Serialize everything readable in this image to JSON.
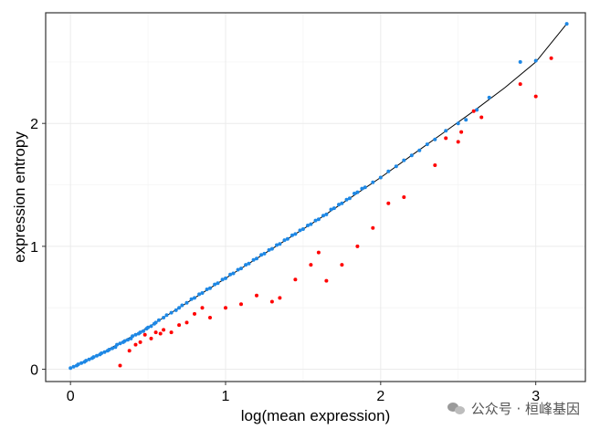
{
  "chart_data": {
    "type": "scatter",
    "xlabel": "log(mean expression)",
    "ylabel": "expression entropy",
    "xlim": [
      -0.16,
      3.32
    ],
    "ylim": [
      -0.1,
      2.9
    ],
    "x_ticks": [
      "0",
      "1",
      "2",
      "3"
    ],
    "y_ticks": [
      "0",
      "1",
      "2"
    ],
    "grid": true,
    "legend": "none",
    "colors": {
      "normal": "#1e88e5",
      "outlier": "#ff0000",
      "fit_line": "#000000"
    },
    "fit_line": {
      "x": [
        0.0,
        0.1,
        0.2,
        0.3,
        0.4,
        0.5,
        0.6,
        0.8,
        1.0,
        1.2,
        1.4,
        1.6,
        1.8,
        2.0,
        2.2,
        2.4,
        2.6,
        2.8,
        3.0,
        3.2
      ],
      "y": [
        0.01,
        0.07,
        0.13,
        0.2,
        0.27,
        0.34,
        0.42,
        0.58,
        0.74,
        0.9,
        1.06,
        1.22,
        1.39,
        1.56,
        1.74,
        1.92,
        2.1,
        2.29,
        2.5,
        2.81
      ]
    },
    "series": [
      {
        "category": "normal",
        "x": [
          0.0,
          0.02,
          0.04,
          0.05,
          0.07,
          0.09,
          0.1,
          0.12,
          0.14,
          0.15,
          0.17,
          0.19,
          0.2,
          0.22,
          0.24,
          0.25,
          0.27,
          0.29,
          0.3,
          0.32,
          0.34,
          0.35,
          0.37,
          0.39,
          0.4,
          0.42,
          0.44,
          0.45,
          0.47,
          0.49,
          0.5,
          0.52,
          0.54,
          0.55,
          0.57,
          0.6,
          0.62,
          0.65,
          0.68,
          0.7,
          0.72,
          0.75,
          0.78,
          0.8,
          0.83,
          0.85,
          0.88,
          0.9,
          0.93,
          0.95,
          0.98,
          1.0,
          1.03,
          1.05,
          1.08,
          1.1,
          1.13,
          1.15,
          1.18,
          1.2,
          1.23,
          1.25,
          1.28,
          1.3,
          1.33,
          1.35,
          1.38,
          1.4,
          1.43,
          1.45,
          1.48,
          1.5,
          1.53,
          1.55,
          1.58,
          1.6,
          1.63,
          1.65,
          1.68,
          1.7,
          1.73,
          1.75,
          1.78,
          1.8,
          1.83,
          1.85,
          1.88,
          1.9,
          1.95,
          2.0,
          2.05,
          2.1,
          2.15,
          2.2,
          2.25,
          2.3,
          2.35,
          2.42,
          2.5,
          2.55,
          2.62,
          2.7,
          2.9,
          3.0,
          3.2
        ],
        "y": [
          0.01,
          0.02,
          0.03,
          0.04,
          0.05,
          0.06,
          0.07,
          0.08,
          0.09,
          0.1,
          0.11,
          0.12,
          0.13,
          0.14,
          0.15,
          0.16,
          0.17,
          0.18,
          0.2,
          0.21,
          0.22,
          0.23,
          0.24,
          0.25,
          0.27,
          0.28,
          0.29,
          0.3,
          0.31,
          0.33,
          0.34,
          0.35,
          0.37,
          0.38,
          0.4,
          0.42,
          0.44,
          0.46,
          0.48,
          0.5,
          0.52,
          0.54,
          0.57,
          0.58,
          0.61,
          0.62,
          0.65,
          0.66,
          0.69,
          0.7,
          0.73,
          0.74,
          0.77,
          0.78,
          0.81,
          0.82,
          0.85,
          0.86,
          0.89,
          0.9,
          0.93,
          0.94,
          0.97,
          0.98,
          1.01,
          1.02,
          1.05,
          1.06,
          1.09,
          1.1,
          1.13,
          1.14,
          1.17,
          1.18,
          1.21,
          1.22,
          1.25,
          1.26,
          1.3,
          1.31,
          1.34,
          1.35,
          1.38,
          1.39,
          1.43,
          1.44,
          1.47,
          1.48,
          1.52,
          1.56,
          1.61,
          1.65,
          1.7,
          1.74,
          1.78,
          1.83,
          1.87,
          1.94,
          2.0,
          2.03,
          2.11,
          2.21,
          2.5,
          2.51,
          2.81
        ]
      },
      {
        "category": "outlier",
        "x": [
          0.32,
          0.38,
          0.42,
          0.45,
          0.48,
          0.52,
          0.55,
          0.58,
          0.6,
          0.65,
          0.7,
          0.75,
          0.8,
          0.85,
          0.9,
          1.0,
          1.1,
          1.2,
          1.3,
          1.35,
          1.45,
          1.55,
          1.6,
          1.65,
          1.75,
          1.85,
          1.95,
          2.05,
          2.15,
          2.35,
          2.42,
          2.5,
          2.52,
          2.6,
          2.65,
          2.9,
          3.0,
          3.1
        ],
        "y": [
          0.03,
          0.15,
          0.2,
          0.22,
          0.28,
          0.25,
          0.3,
          0.29,
          0.32,
          0.3,
          0.36,
          0.38,
          0.45,
          0.5,
          0.42,
          0.5,
          0.53,
          0.6,
          0.55,
          0.58,
          0.73,
          0.85,
          0.95,
          0.72,
          0.85,
          1.0,
          1.15,
          1.35,
          1.4,
          1.66,
          1.88,
          1.85,
          1.93,
          2.1,
          2.05,
          2.32,
          2.22,
          2.53
        ]
      }
    ]
  }
}
